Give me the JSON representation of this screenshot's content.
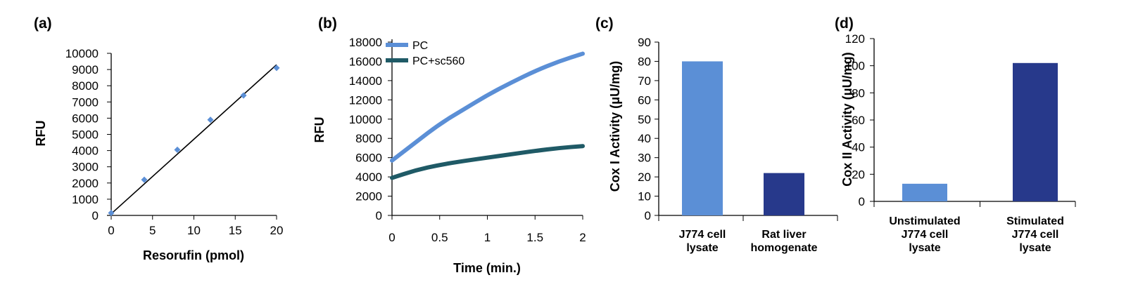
{
  "chart_data": [
    {
      "panel": "(a)",
      "type": "scatter",
      "xlabel": "Resorufin (pmol)",
      "ylabel": "RFU",
      "xlim": [
        0,
        20
      ],
      "ylim": [
        0,
        10000
      ],
      "xticks": [
        "0",
        "5",
        "10",
        "15",
        "20"
      ],
      "yticks": [
        "0",
        "1000",
        "2000",
        "3000",
        "4000",
        "5000",
        "6000",
        "7000",
        "8000",
        "9000",
        "10000"
      ],
      "series": [
        {
          "x": [
            0,
            4,
            8,
            12,
            16,
            20
          ],
          "values": [
            150,
            2200,
            4050,
            5900,
            7400,
            9100
          ],
          "color": "#5b8fd6"
        }
      ],
      "trendline": {
        "x": [
          0,
          20
        ],
        "values": [
          100,
          9300
        ],
        "color": "#000000"
      },
      "grid": false
    },
    {
      "panel": "(b)",
      "type": "line",
      "xlabel": "Time (min.)",
      "ylabel": "RFU",
      "xlim": [
        0,
        2
      ],
      "ylim": [
        0,
        18000
      ],
      "xticks": [
        "0",
        "0.5",
        "1",
        "1.5",
        "2"
      ],
      "yticks": [
        "0",
        "2000",
        "4000",
        "6000",
        "8000",
        "10000",
        "12000",
        "14000",
        "16000",
        "18000"
      ],
      "legend_position": "top-left",
      "series": [
        {
          "name": "PC",
          "color": "#5b8fd6",
          "x": [
            0,
            0.25,
            0.5,
            0.75,
            1,
            1.25,
            1.5,
            1.75,
            2
          ],
          "values": [
            5700,
            7600,
            9500,
            11000,
            12500,
            13800,
            15000,
            16000,
            16800
          ]
        },
        {
          "name": "PC+sc560",
          "color": "#1f5a66",
          "x": [
            0,
            0.25,
            0.5,
            0.75,
            1,
            1.25,
            1.5,
            1.75,
            2
          ],
          "values": [
            3900,
            4700,
            5250,
            5650,
            6000,
            6350,
            6700,
            7000,
            7200
          ]
        }
      ],
      "grid": false
    },
    {
      "panel": "(c)",
      "type": "bar",
      "ylabel": "Cox I Activity (μU/mg)",
      "ylim": [
        0,
        90
      ],
      "yticks": [
        "0",
        "10",
        "20",
        "30",
        "40",
        "50",
        "60",
        "70",
        "80",
        "90"
      ],
      "categories": [
        [
          "J774 cell",
          "lysate"
        ],
        [
          "Rat liver",
          "homogenate"
        ]
      ],
      "values": [
        80,
        22
      ],
      "colors": [
        "#5b8fd6",
        "#27398b"
      ],
      "grid": false
    },
    {
      "panel": "(d)",
      "type": "bar",
      "ylabel": "Cox II Activity (μU/mg)",
      "ylim": [
        0,
        120
      ],
      "yticks": [
        "0",
        "20",
        "40",
        "60",
        "80",
        "100",
        "120"
      ],
      "categories": [
        [
          "Unstimulated",
          "J774 cell",
          "lysate"
        ],
        [
          "Stimulated",
          "J774 cell",
          "lysate"
        ]
      ],
      "values": [
        13,
        102
      ],
      "colors": [
        "#5b8fd6",
        "#27398b"
      ],
      "grid": false
    }
  ]
}
